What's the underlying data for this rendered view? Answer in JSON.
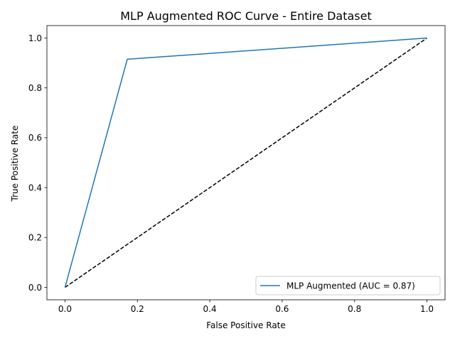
{
  "chart_data": {
    "type": "line",
    "title": "MLP Augmented ROC Curve - Entire Dataset",
    "xlabel": "False Positive Rate",
    "ylabel": "True Positive Rate",
    "xlim": [
      -0.05,
      1.05
    ],
    "ylim": [
      -0.05,
      1.05
    ],
    "xticks": [
      0.0,
      0.2,
      0.4,
      0.6,
      0.8,
      1.0
    ],
    "yticks": [
      0.0,
      0.2,
      0.4,
      0.6,
      0.8,
      1.0
    ],
    "grid": false,
    "legend_position": "lower-right",
    "series": [
      {
        "name": "MLP Augmented (AUC = 0.87)",
        "color": "#1f77b4",
        "style": "solid",
        "x": [
          0.0,
          0.172,
          1.0
        ],
        "y": [
          0.0,
          0.915,
          1.0
        ]
      },
      {
        "color": "#000000",
        "style": "dashed",
        "x": [
          0.0,
          1.0
        ],
        "y": [
          0.0,
          1.0
        ]
      }
    ]
  }
}
